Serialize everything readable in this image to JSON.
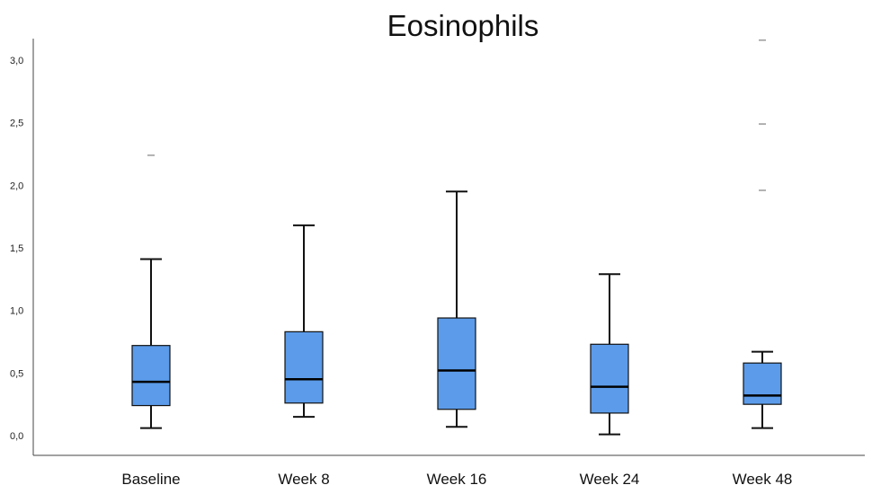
{
  "chart_data": {
    "type": "boxplot",
    "title": "Eosinophils",
    "xlabel": "",
    "ylabel": "",
    "ylim": [
      -0.15,
      3.2
    ],
    "yticks": [
      "0,0",
      "0,5",
      "1,0",
      "1,5",
      "2,0",
      "2,5",
      "3,0"
    ],
    "ytick_values": [
      0,
      0.5,
      1.0,
      1.5,
      2.0,
      2.5,
      3.0
    ],
    "grid": false,
    "box_color": "#5b9bea",
    "categories": [
      "Baseline",
      "Week 8",
      "Week 16",
      "Week 24",
      "Week 48"
    ],
    "boxes": [
      {
        "category": "Baseline",
        "min": 0.06,
        "q1": 0.24,
        "median": 0.43,
        "q3": 0.72,
        "max": 1.41,
        "outliers": [
          2.24
        ]
      },
      {
        "category": "Week 8",
        "min": 0.15,
        "q1": 0.26,
        "median": 0.45,
        "q3": 0.83,
        "max": 1.68,
        "outliers": []
      },
      {
        "category": "Week 16",
        "min": 0.07,
        "q1": 0.21,
        "median": 0.52,
        "q3": 0.94,
        "max": 1.95,
        "outliers": []
      },
      {
        "category": "Week 24",
        "min": 0.01,
        "q1": 0.18,
        "median": 0.39,
        "q3": 0.73,
        "max": 1.29,
        "outliers": []
      },
      {
        "category": "Week 48",
        "min": 0.06,
        "q1": 0.25,
        "median": 0.32,
        "q3": 0.58,
        "max": 0.67,
        "outliers": [
          1.96,
          2.49,
          3.16
        ]
      }
    ]
  }
}
